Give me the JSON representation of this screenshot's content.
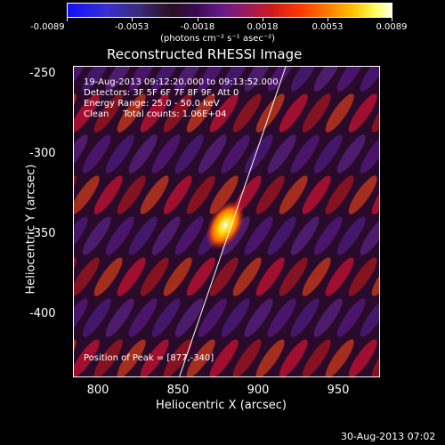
{
  "colorbar": {
    "ticks": [
      "-0.0089",
      "-0.0053",
      "-0.0018",
      "0.0018",
      "0.0053",
      "0.0089"
    ],
    "units": "(photons cm⁻² s⁻¹ asec⁻²)"
  },
  "title": "Reconstructed RHESSI Image",
  "info": {
    "time_range": "19-Aug-2013 09:12:20.000 to 09:13:52.000",
    "detectors": "Detectors: 3F 5F 6F 7F 8F 9F, Att 0",
    "energy": "Energy Range: 25.0 - 50.0 keV",
    "method": "Clean     Total counts: 1.06E+04",
    "peak": "Position of Peak = [877,-340]"
  },
  "axes": {
    "xlabel": "Heliocentric X (arcsec)",
    "ylabel": "Heliocentric Y (arcsec)",
    "xticks": [
      "800",
      "850",
      "900",
      "950"
    ],
    "yticks": [
      "-250",
      "-300",
      "-350",
      "-400"
    ]
  },
  "timestamp": "30-Aug-2013 07:02"
}
